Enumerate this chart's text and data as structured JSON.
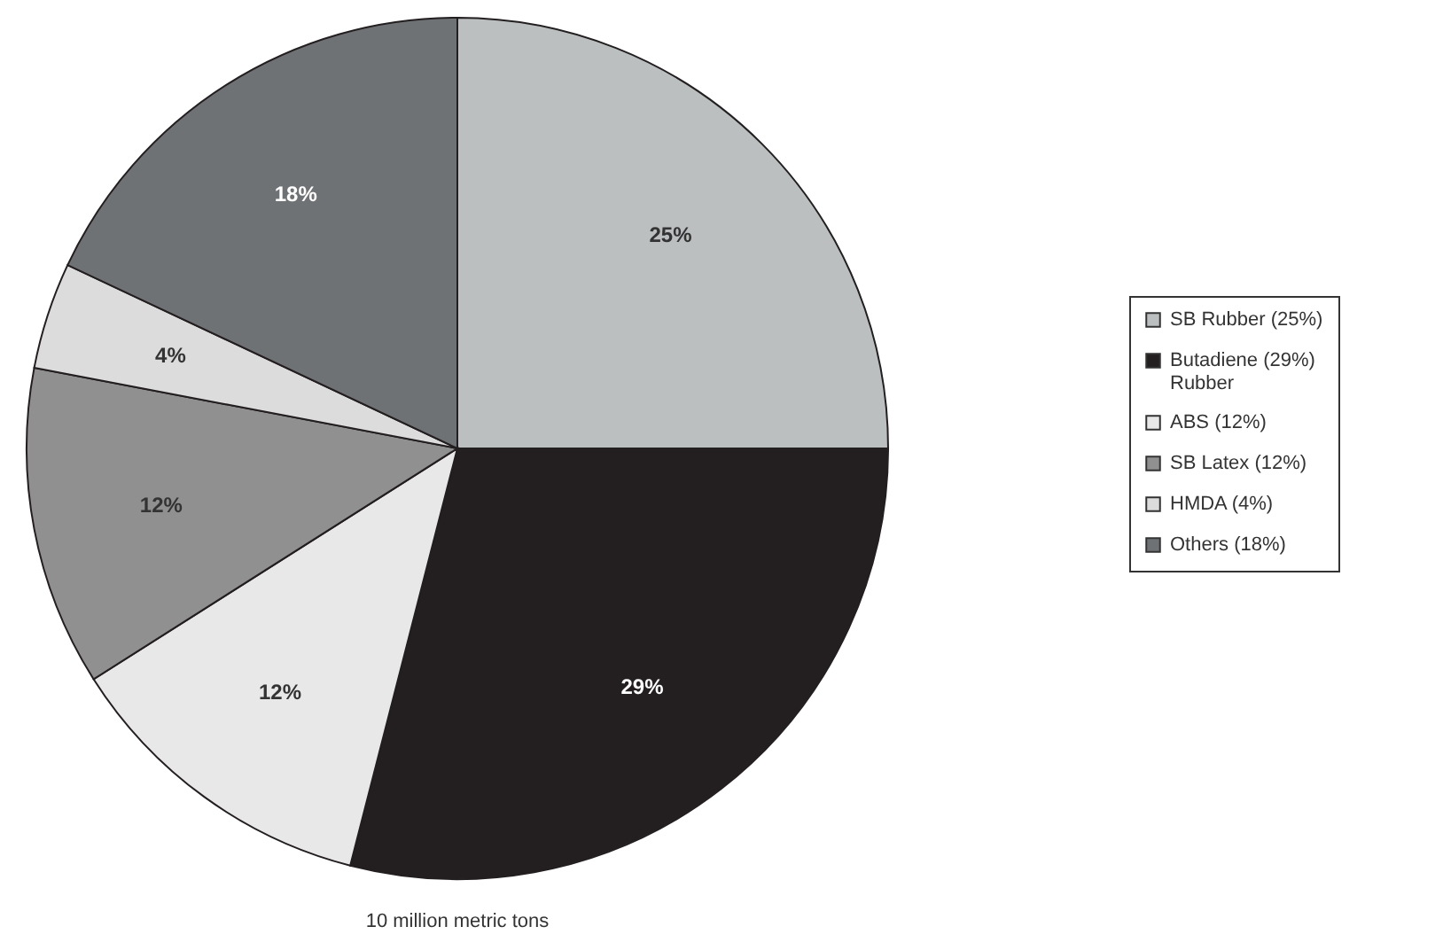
{
  "chart_data": {
    "type": "pie",
    "categories": [
      "SB Rubber (25%)",
      "Butadiene (29%)\nRubber",
      "ABS (12%)",
      "SB Latex (12%)",
      "HMDA (4%)",
      "Others (18%)"
    ],
    "values": [
      25,
      29,
      12,
      12,
      4,
      18
    ],
    "colors": [
      "#bcbfc0",
      "#231f20",
      "#e8e8e8",
      "#909090",
      "#dcdcdc",
      "#6f7275"
    ],
    "value_labels": [
      "25%",
      "29%",
      "12%",
      "12%",
      "4%",
      "18%"
    ],
    "annotations": [
      "10 million metric tons"
    ],
    "legend": "right"
  }
}
